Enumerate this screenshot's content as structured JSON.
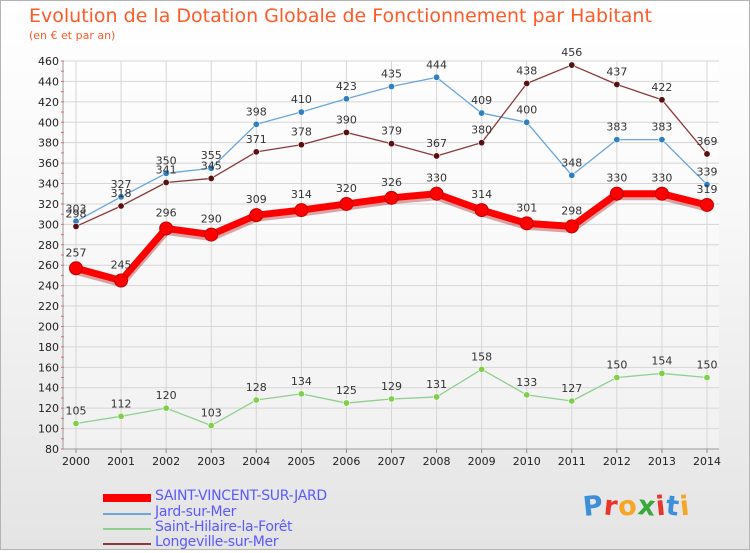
{
  "title": "Evolution de la Dotation Globale de Fonctionnement par Habitant",
  "subtitle": "(en € et par an)",
  "logo": {
    "letters": [
      "P",
      "r",
      "o",
      "x",
      "i",
      "t",
      "i"
    ],
    "colors": [
      "#3c8fd8",
      "#e8342d",
      "#f5a623",
      "#3aa83a",
      "#e8342d",
      "#3c8fd8",
      "#f5a623"
    ]
  },
  "chart_data": {
    "type": "line",
    "categories": [
      "2000",
      "2001",
      "2002",
      "2003",
      "2004",
      "2005",
      "2006",
      "2007",
      "2008",
      "2009",
      "2010",
      "2011",
      "2012",
      "2013",
      "2014"
    ],
    "ylim": [
      80,
      460
    ],
    "yticks": [
      "80",
      "100",
      "120",
      "140",
      "160",
      "180",
      "200",
      "220",
      "240",
      "260",
      "280",
      "300",
      "320",
      "340",
      "360",
      "380",
      "400",
      "420",
      "440",
      "460"
    ],
    "grid": true,
    "legend_position": "bottom-left",
    "series": [
      {
        "name": "Jard-sur-Mer",
        "color": "#6aa6d8",
        "marker": "#2f7fc1",
        "width": 1.3,
        "values": [
          303,
          327,
          350,
          355,
          398,
          410,
          423,
          435,
          444,
          409,
          400,
          348,
          383,
          383,
          339
        ]
      },
      {
        "name": "Longeville-sur-Mer",
        "color": "#8a3a3a",
        "marker": "#5a1010",
        "width": 1.3,
        "values": [
          298,
          318,
          341,
          345,
          371,
          378,
          390,
          379,
          367,
          380,
          438,
          456,
          437,
          422,
          369
        ]
      },
      {
        "name": "Saint-Hilaire-la-Forêt",
        "color": "#8fd08f",
        "marker": "#7ed04a",
        "width": 1.3,
        "values": [
          105,
          112,
          120,
          103,
          128,
          134,
          125,
          129,
          131,
          158,
          133,
          127,
          150,
          154,
          150
        ]
      },
      {
        "name": "SAINT-VINCENT-SUR-JARD",
        "color": "#ff0000",
        "marker": "#ff0000",
        "width": 7,
        "values": [
          257,
          245,
          296,
          290,
          309,
          314,
          320,
          326,
          330,
          314,
          301,
          298,
          330,
          330,
          319
        ]
      }
    ],
    "legend": [
      {
        "name": "SAINT-VINCENT-SUR-JARD",
        "color": "#ff0000",
        "text_color": "#5a5aff",
        "width": 8
      },
      {
        "name": "Jard-sur-Mer",
        "color": "#6aa6d8",
        "text_color": "#5a5aff",
        "width": 2
      },
      {
        "name": "Saint-Hilaire-la-Forêt",
        "color": "#8fd08f",
        "text_color": "#5a5aff",
        "width": 2
      },
      {
        "name": "Longeville-sur-Mer",
        "color": "#8a3a3a",
        "text_color": "#5a5aff",
        "width": 2
      }
    ]
  }
}
